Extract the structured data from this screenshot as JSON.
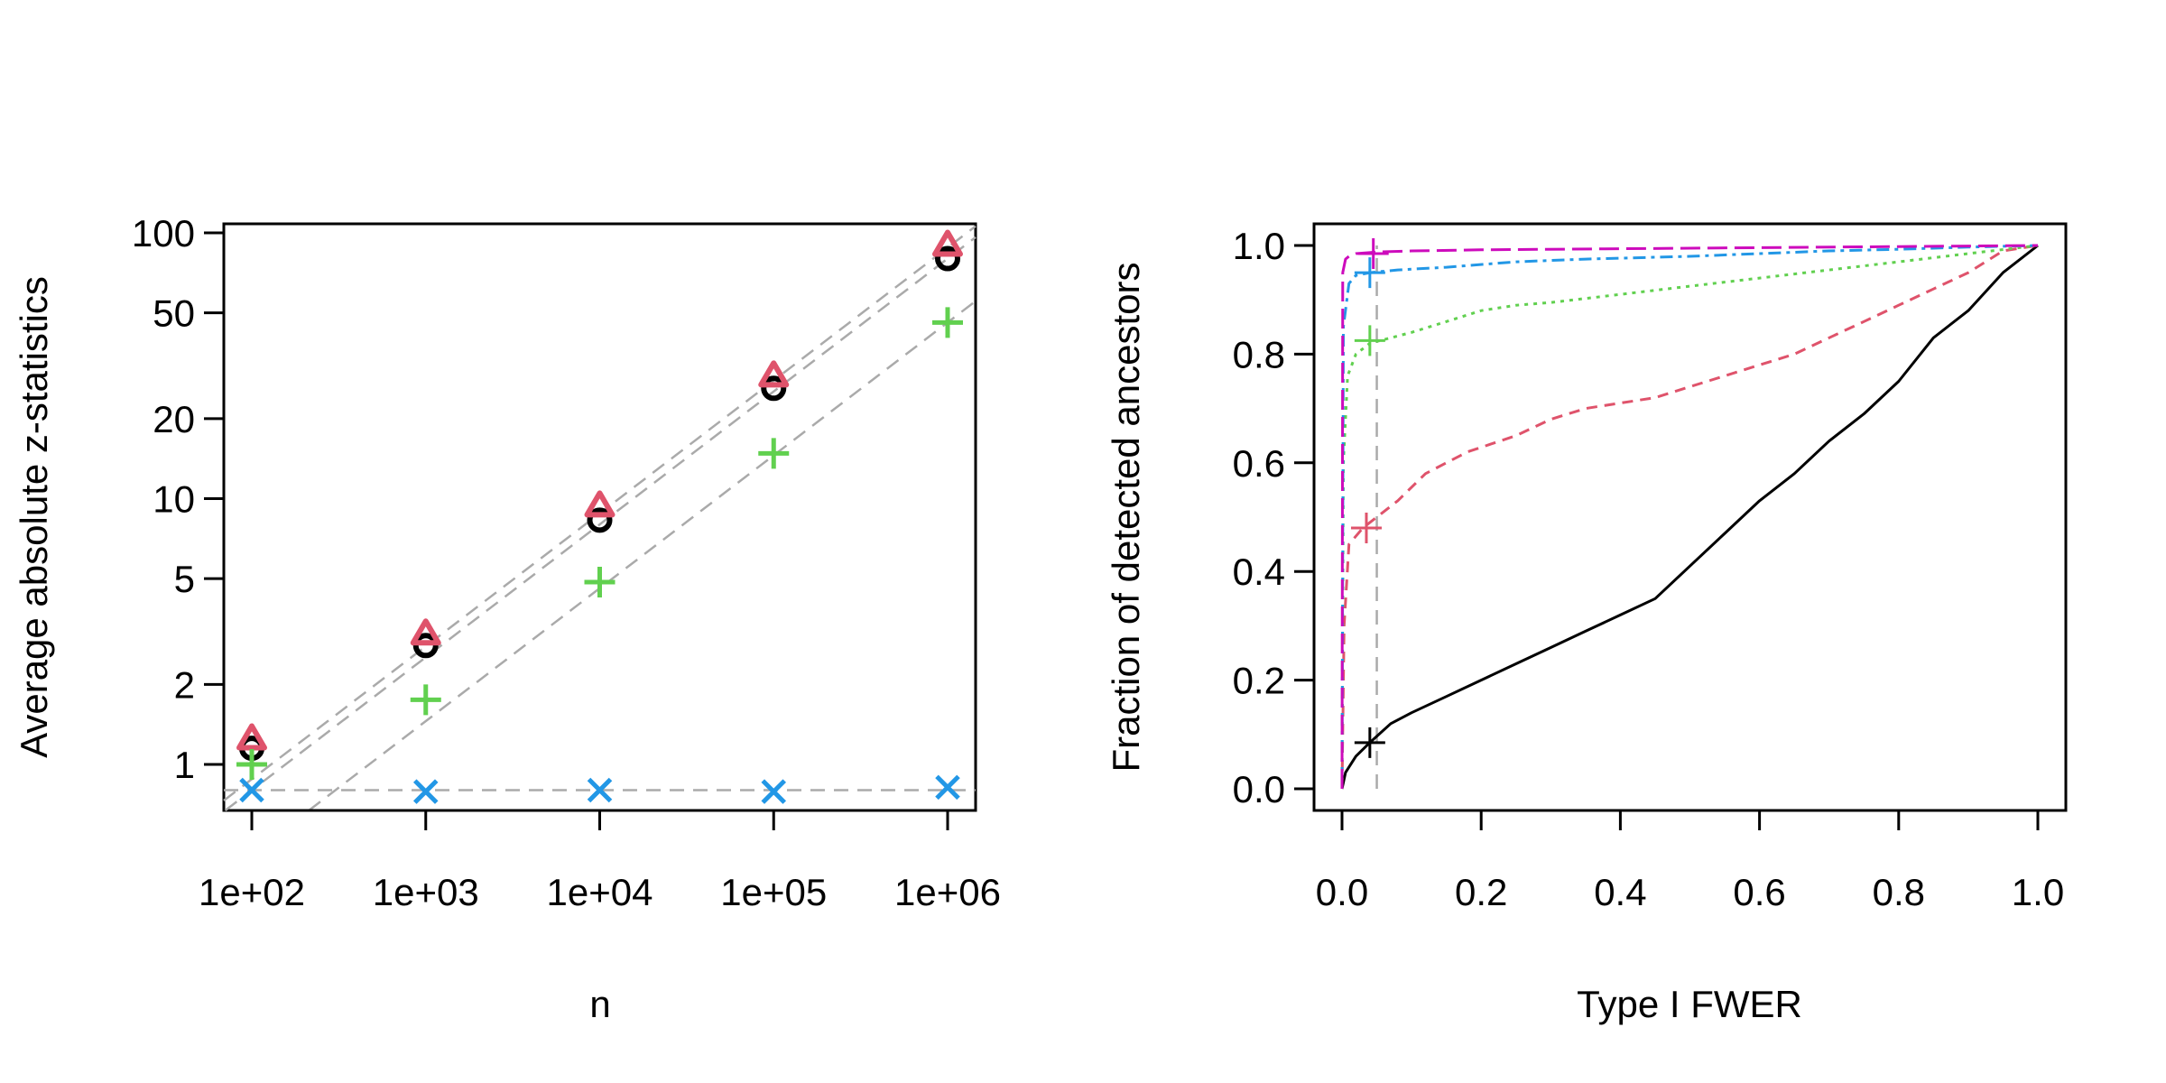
{
  "chart_data": [
    {
      "type": "scatter",
      "title": "",
      "xlabel": "n",
      "ylabel": "Average absolute z-statistics",
      "x_scale": "log10",
      "y_scale": "log10",
      "x": [
        100,
        1000,
        10000,
        100000,
        1000000
      ],
      "x_tick_labels": [
        "1e+02",
        "1e+03",
        "1e+04",
        "1e+05",
        "1e+06"
      ],
      "y_ticks": [
        1,
        2,
        5,
        10,
        20,
        50,
        100
      ],
      "y_tick_labels": [
        "1",
        "2",
        "5",
        "10",
        "20",
        "50",
        "100"
      ],
      "xlim": [
        100,
        1000000
      ],
      "ylim": [
        0.68,
        105
      ],
      "series": [
        {
          "name": "circle",
          "marker": "circle",
          "color": "#000000",
          "values": [
            1.15,
            2.8,
            8.3,
            26,
            80
          ]
        },
        {
          "name": "triangle",
          "marker": "triangle",
          "color": "#DF536B",
          "values": [
            1.25,
            3.1,
            9.4,
            29,
            90
          ]
        },
        {
          "name": "plus",
          "marker": "plus",
          "color": "#61D04F",
          "values": [
            1.0,
            1.75,
            4.85,
            14.8,
            46
          ]
        },
        {
          "name": "cross",
          "marker": "cross",
          "color": "#2297E6",
          "values": [
            0.8,
            0.79,
            0.8,
            0.79,
            0.82
          ]
        }
      ],
      "reference_lines": [
        {
          "slope": 0.5,
          "value_at_1e2": 0.8
        },
        {
          "slope": 0.5,
          "value_at_1e2": 0.88
        },
        {
          "slope": 0.5,
          "value_at_1e2": 0.46
        },
        {
          "slope": 0,
          "value_at_1e2": 0.8
        }
      ]
    },
    {
      "type": "line",
      "title": "",
      "xlabel": "Type I FWER",
      "ylabel": "Fraction of detected ancestors",
      "xlim": [
        0,
        1
      ],
      "ylim": [
        0,
        1
      ],
      "x_ticks": [
        0,
        0.2,
        0.4,
        0.6,
        0.8,
        1
      ],
      "x_tick_labels": [
        "0.0",
        "0.2",
        "0.4",
        "0.6",
        "0.8",
        "1.0"
      ],
      "y_ticks": [
        0,
        0.2,
        0.4,
        0.6,
        0.8,
        1
      ],
      "y_tick_labels": [
        "0.0",
        "0.2",
        "0.4",
        "0.6",
        "0.8",
        "1.0"
      ],
      "vline_x": 0.05,
      "series": [
        {
          "name": "black",
          "color": "#000000",
          "dash": "solid",
          "x": [
            0,
            0.005,
            0.02,
            0.04,
            0.07,
            0.1,
            0.15,
            0.2,
            0.25,
            0.3,
            0.35,
            0.4,
            0.45,
            0.5,
            0.55,
            0.6,
            0.65,
            0.7,
            0.75,
            0.8,
            0.85,
            0.9,
            0.95,
            1.0
          ],
          "y": [
            0,
            0.03,
            0.06,
            0.085,
            0.12,
            0.14,
            0.17,
            0.2,
            0.23,
            0.26,
            0.29,
            0.32,
            0.35,
            0.41,
            0.47,
            0.53,
            0.58,
            0.64,
            0.69,
            0.75,
            0.83,
            0.88,
            0.95,
            1.0
          ],
          "marker_at": [
            0.04,
            0.085
          ]
        },
        {
          "name": "red",
          "color": "#DF536B",
          "dash": "dashed",
          "x": [
            0,
            0.003,
            0.01,
            0.03,
            0.05,
            0.08,
            0.12,
            0.18,
            0.25,
            0.3,
            0.35,
            0.4,
            0.45,
            0.5,
            0.55,
            0.6,
            0.65,
            0.7,
            0.75,
            0.8,
            0.85,
            0.9,
            0.95,
            1.0
          ],
          "y": [
            0,
            0.3,
            0.45,
            0.48,
            0.5,
            0.53,
            0.58,
            0.62,
            0.65,
            0.68,
            0.7,
            0.71,
            0.72,
            0.74,
            0.76,
            0.78,
            0.8,
            0.83,
            0.86,
            0.89,
            0.92,
            0.95,
            0.99,
            1.0
          ],
          "marker_at": [
            0.035,
            0.48
          ]
        },
        {
          "name": "green",
          "color": "#61D04F",
          "dash": "dotted",
          "x": [
            0,
            0.002,
            0.008,
            0.02,
            0.04,
            0.07,
            0.1,
            0.15,
            0.2,
            0.25,
            0.3,
            0.4,
            0.5,
            0.6,
            0.7,
            0.8,
            0.9,
            1.0
          ],
          "y": [
            0,
            0.6,
            0.76,
            0.8,
            0.82,
            0.83,
            0.84,
            0.86,
            0.88,
            0.89,
            0.895,
            0.91,
            0.925,
            0.94,
            0.955,
            0.97,
            0.985,
            1.0
          ],
          "marker_at": [
            0.04,
            0.825
          ]
        },
        {
          "name": "blue",
          "color": "#2297E6",
          "dash": "dotdash",
          "x": [
            0,
            0.002,
            0.01,
            0.02,
            0.04,
            0.08,
            0.15,
            0.25,
            0.35,
            0.5,
            0.6,
            0.7,
            0.8,
            0.9,
            1.0
          ],
          "y": [
            0,
            0.85,
            0.93,
            0.945,
            0.95,
            0.955,
            0.96,
            0.97,
            0.975,
            0.98,
            0.985,
            0.99,
            0.993,
            0.997,
            1.0
          ],
          "marker_at": [
            0.04,
            0.95
          ]
        },
        {
          "name": "magenta",
          "color": "#CD0BBC",
          "dash": "longdash",
          "x": [
            0,
            0.001,
            0.005,
            0.01,
            0.02,
            0.05,
            0.1,
            0.2,
            0.4,
            0.6,
            0.8,
            1.0
          ],
          "y": [
            0,
            0.95,
            0.975,
            0.98,
            0.985,
            0.988,
            0.99,
            0.992,
            0.994,
            0.996,
            0.998,
            1.0
          ],
          "marker_at": [
            0.045,
            0.985
          ]
        }
      ]
    }
  ]
}
